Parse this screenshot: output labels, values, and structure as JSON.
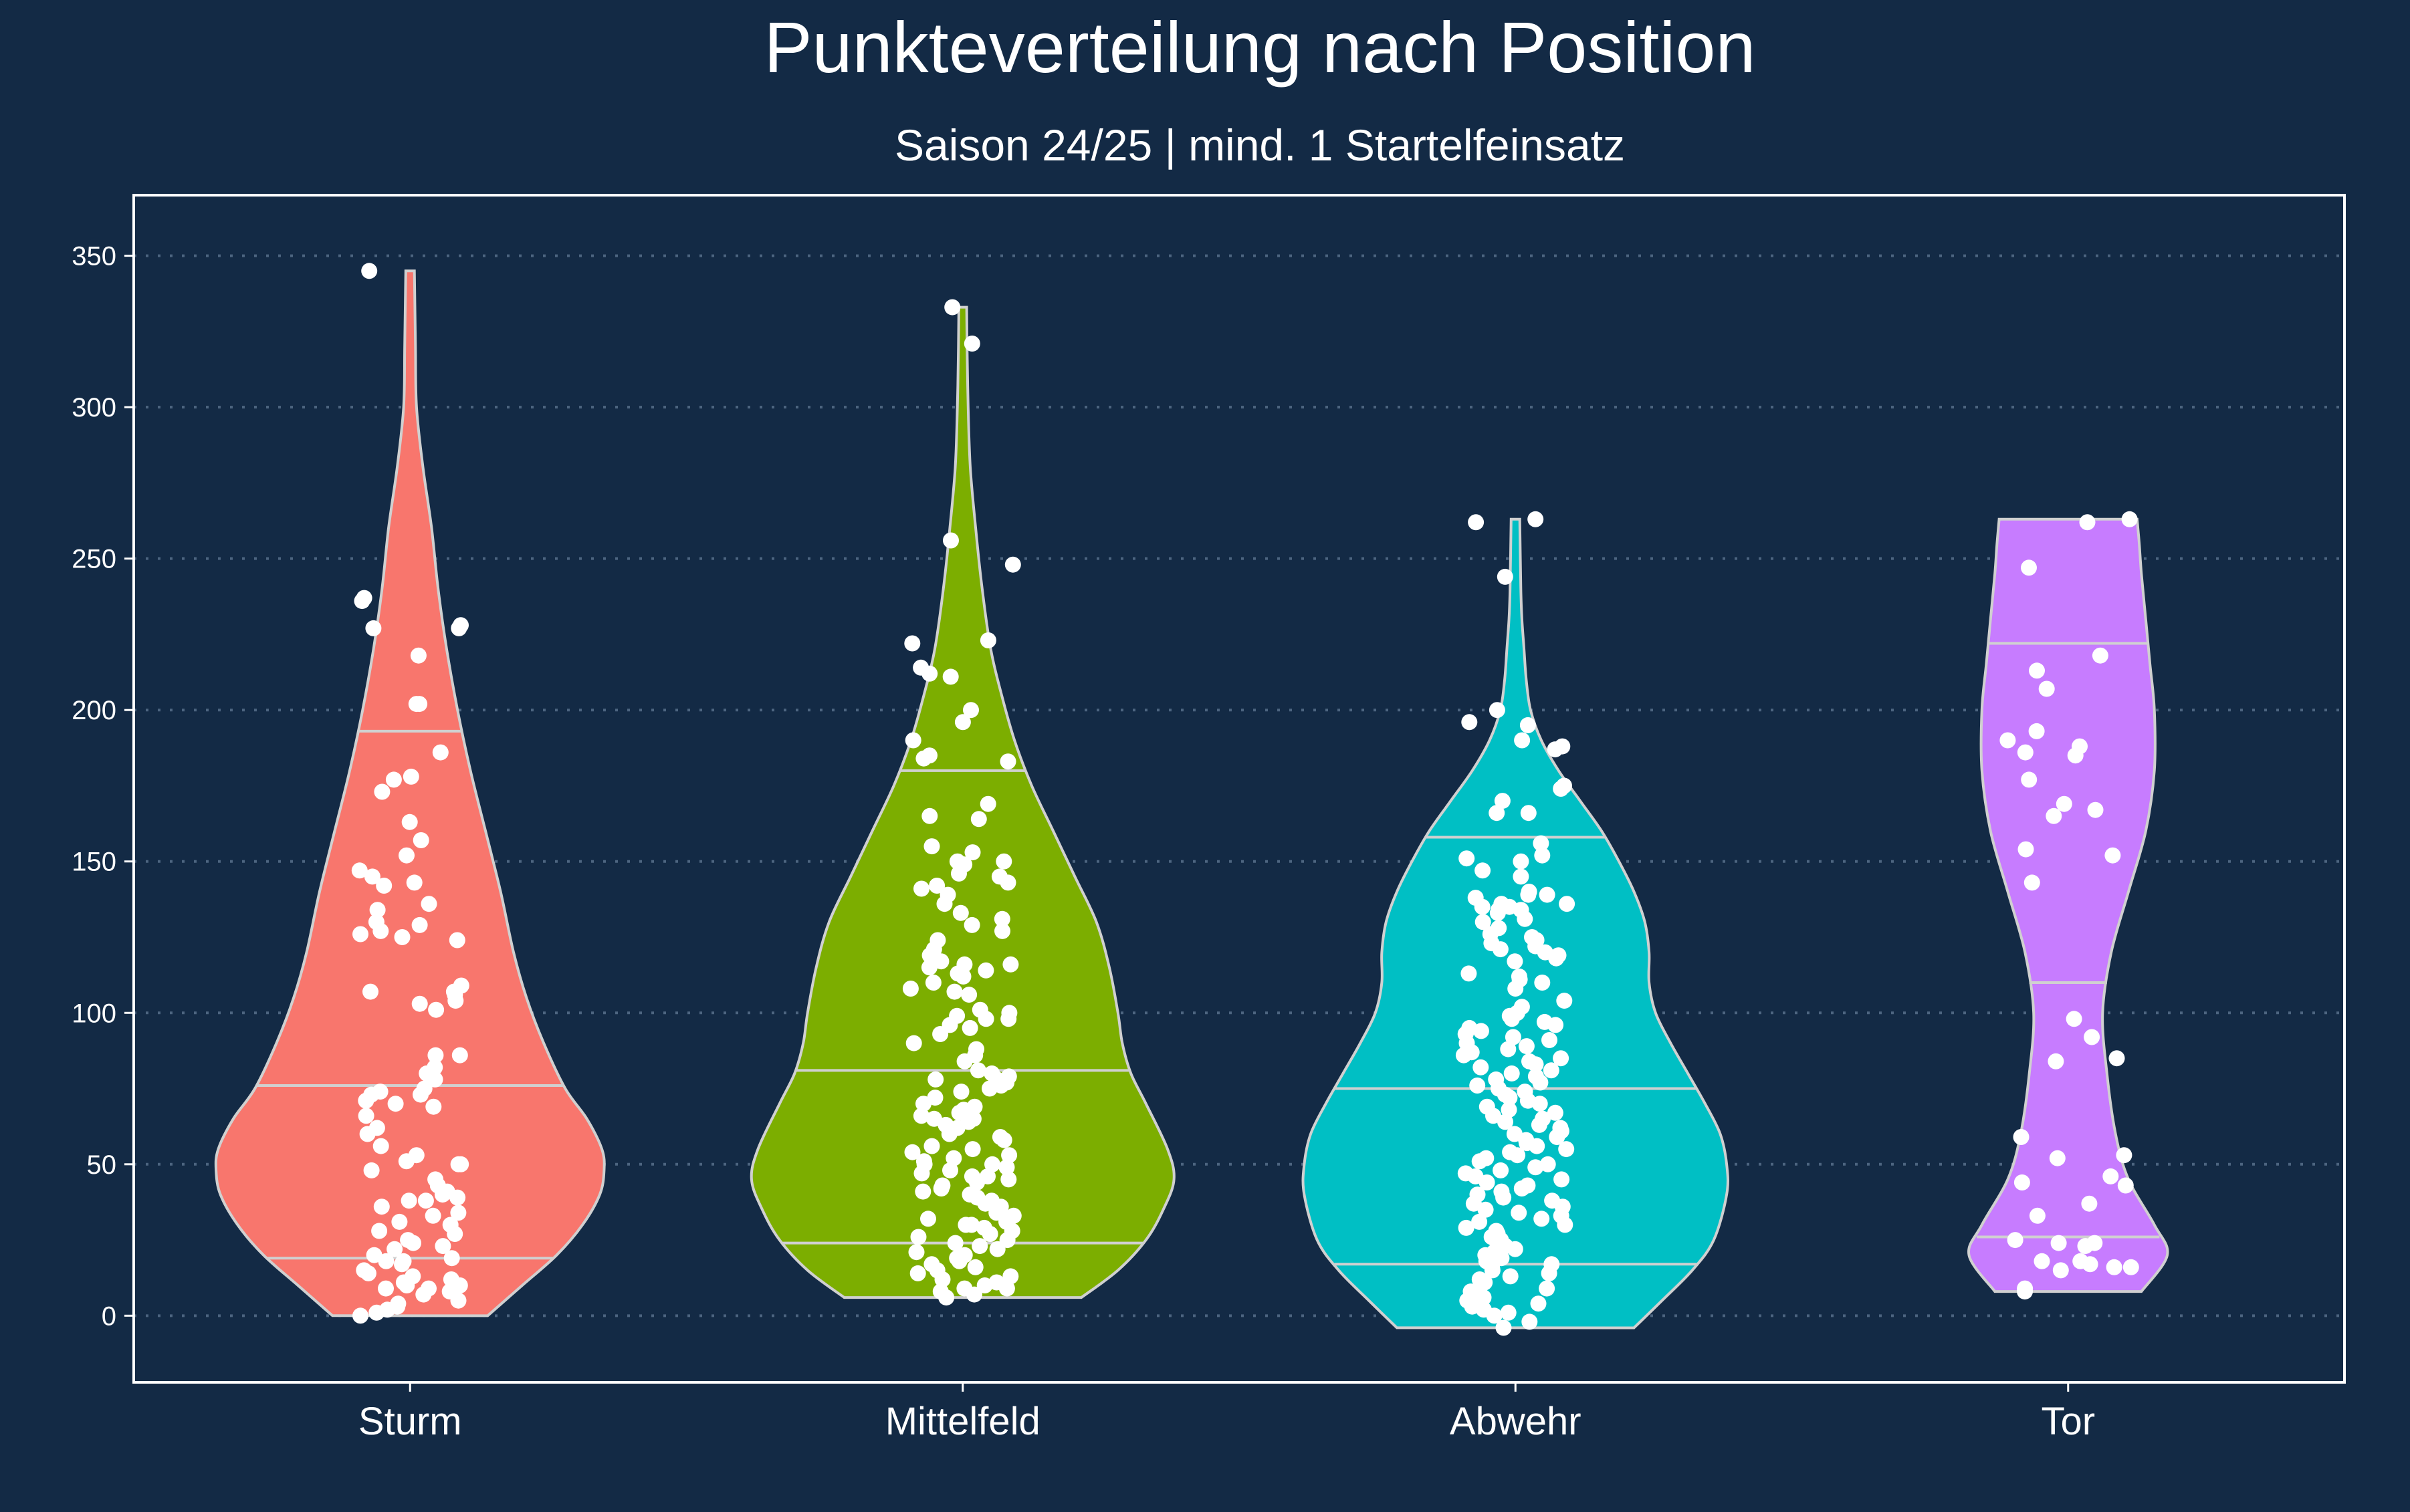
{
  "chart_data": {
    "type": "violin",
    "title": "Punkteverteilung nach Position",
    "subtitle": "Saison 24/25 | mind. 1 Startelfeinsatz",
    "xlabel": "",
    "ylabel": "",
    "ylim": [
      -22,
      370
    ],
    "yticks": [
      0,
      50,
      100,
      150,
      200,
      250,
      300,
      350
    ],
    "grid": "horizontal-dotted",
    "colors": {
      "background": "#132a45",
      "panel_border": "#ffffff",
      "grid": "#4d6580",
      "outline": "#d0d0d0",
      "points": "#ffffff"
    },
    "series": [
      {
        "category": "Sturm",
        "color": "#f8766d",
        "min": 0,
        "max": 345,
        "quantiles": [
          19,
          76,
          193
        ],
        "profile": [
          [
            0,
            0.36
          ],
          [
            10,
            0.52
          ],
          [
            20,
            0.68
          ],
          [
            30,
            0.8
          ],
          [
            40,
            0.88
          ],
          [
            48,
            0.9
          ],
          [
            55,
            0.89
          ],
          [
            65,
            0.82
          ],
          [
            75,
            0.72
          ],
          [
            90,
            0.62
          ],
          [
            105,
            0.54
          ],
          [
            120,
            0.48
          ],
          [
            140,
            0.42
          ],
          [
            160,
            0.35
          ],
          [
            180,
            0.28
          ],
          [
            200,
            0.22
          ],
          [
            220,
            0.17
          ],
          [
            240,
            0.13
          ],
          [
            260,
            0.1
          ],
          [
            280,
            0.06
          ],
          [
            300,
            0.03
          ],
          [
            320,
            0.025
          ],
          [
            345,
            0.02
          ]
        ],
        "points": [
          345,
          237,
          236,
          228,
          227,
          227,
          218,
          202,
          202,
          186,
          178,
          177,
          173,
          163,
          157,
          152,
          147,
          145,
          143,
          142,
          136,
          134,
          130,
          129,
          127,
          126,
          125,
          124,
          109,
          107,
          107,
          106,
          104,
          103,
          101,
          86,
          86,
          82,
          80,
          78,
          75,
          74,
          73,
          73,
          71,
          70,
          69,
          66,
          62,
          60,
          56,
          53,
          51,
          50,
          50,
          48,
          45,
          43,
          41,
          40,
          39,
          38,
          38,
          36,
          34,
          33,
          31,
          30,
          28,
          27,
          25,
          24,
          23,
          22,
          20,
          19,
          18,
          18,
          17,
          15,
          14,
          13,
          12,
          11,
          10,
          10,
          9,
          9,
          8,
          7,
          5,
          4,
          3,
          2,
          1,
          0
        ]
      },
      {
        "category": "Mittelfeld",
        "color": "#7cae00",
        "min": 6,
        "max": 333,
        "quantiles": [
          24,
          81,
          180
        ],
        "profile": [
          [
            6,
            0.55
          ],
          [
            15,
            0.72
          ],
          [
            25,
            0.85
          ],
          [
            35,
            0.93
          ],
          [
            45,
            0.98
          ],
          [
            55,
            0.95
          ],
          [
            70,
            0.85
          ],
          [
            80,
            0.78
          ],
          [
            90,
            0.74
          ],
          [
            100,
            0.72
          ],
          [
            115,
            0.68
          ],
          [
            130,
            0.62
          ],
          [
            145,
            0.52
          ],
          [
            160,
            0.42
          ],
          [
            175,
            0.32
          ],
          [
            190,
            0.24
          ],
          [
            205,
            0.18
          ],
          [
            220,
            0.13
          ],
          [
            240,
            0.09
          ],
          [
            260,
            0.06
          ],
          [
            280,
            0.035
          ],
          [
            300,
            0.025
          ],
          [
            320,
            0.02
          ],
          [
            333,
            0.018
          ]
        ],
        "points": [
          333,
          321,
          256,
          248,
          223,
          222,
          214,
          212,
          211,
          200,
          196,
          190,
          185,
          184,
          183,
          169,
          165,
          164,
          155,
          153,
          150,
          150,
          149,
          146,
          145,
          143,
          142,
          141,
          139,
          136,
          133,
          131,
          129,
          127,
          124,
          121,
          119,
          118,
          117,
          116,
          116,
          115,
          114,
          113,
          112,
          110,
          108,
          107,
          106,
          101,
          100,
          99,
          98,
          98,
          96,
          95,
          93,
          90,
          88,
          86,
          84,
          81,
          80,
          79,
          78,
          78,
          77,
          76,
          75,
          74,
          72,
          70,
          69,
          68,
          67,
          66,
          65,
          65,
          64,
          63,
          62,
          60,
          59,
          58,
          56,
          55,
          54,
          53,
          52,
          51,
          50,
          50,
          49,
          48,
          47,
          46,
          46,
          45,
          44,
          43,
          42,
          41,
          40,
          39,
          38,
          37,
          36,
          35,
          34,
          33,
          32,
          31,
          30,
          30,
          29,
          28,
          27,
          26,
          25,
          24,
          23,
          22,
          21,
          20,
          19,
          18,
          17,
          16,
          15,
          14,
          13,
          12,
          11,
          10,
          9,
          9,
          8,
          7,
          6
        ]
      },
      {
        "category": "Abwehr",
        "color": "#00bfc4",
        "min": -4,
        "max": 263,
        "quantiles": [
          17,
          75,
          158
        ],
        "profile": [
          [
            -4,
            0.55
          ],
          [
            5,
            0.68
          ],
          [
            15,
            0.82
          ],
          [
            25,
            0.92
          ],
          [
            40,
            0.98
          ],
          [
            50,
            0.98
          ],
          [
            60,
            0.95
          ],
          [
            70,
            0.88
          ],
          [
            80,
            0.8
          ],
          [
            90,
            0.72
          ],
          [
            100,
            0.65
          ],
          [
            110,
            0.62
          ],
          [
            120,
            0.62
          ],
          [
            130,
            0.6
          ],
          [
            140,
            0.55
          ],
          [
            150,
            0.48
          ],
          [
            160,
            0.4
          ],
          [
            170,
            0.3
          ],
          [
            180,
            0.2
          ],
          [
            190,
            0.12
          ],
          [
            200,
            0.07
          ],
          [
            210,
            0.05
          ],
          [
            220,
            0.04
          ],
          [
            230,
            0.03
          ],
          [
            240,
            0.025
          ],
          [
            263,
            0.02
          ]
        ],
        "points": [
          263,
          262,
          244,
          200,
          196,
          195,
          190,
          188,
          187,
          175,
          174,
          170,
          166,
          166,
          156,
          152,
          151,
          150,
          147,
          145,
          140,
          139,
          139,
          138,
          136,
          136,
          135,
          135,
          134,
          134,
          133,
          131,
          130,
          128,
          126,
          125,
          124,
          123,
          122,
          121,
          120,
          119,
          118,
          117,
          113,
          112,
          111,
          110,
          108,
          104,
          102,
          100,
          99,
          98,
          97,
          96,
          95,
          94,
          93,
          92,
          91,
          90,
          89,
          88,
          87,
          86,
          85,
          84,
          83,
          82,
          81,
          80,
          79,
          78,
          77,
          76,
          75,
          74,
          73,
          72,
          71,
          70,
          69,
          68,
          67,
          66,
          65,
          64,
          63,
          62,
          61,
          60,
          59,
          58,
          57,
          56,
          55,
          54,
          53,
          52,
          51,
          50,
          49,
          48,
          47,
          46,
          45,
          44,
          43,
          42,
          41,
          40,
          39,
          38,
          37,
          36,
          35,
          34,
          33,
          32,
          31,
          30,
          29,
          28,
          27,
          26,
          25,
          24,
          23,
          22,
          21,
          20,
          19,
          18,
          17,
          16,
          15,
          14,
          13,
          12,
          11,
          10,
          9,
          8,
          7,
          6,
          5,
          4,
          3,
          2,
          1,
          0,
          -2,
          -4
        ]
      },
      {
        "category": "Tor",
        "color": "#c77cff",
        "min": 8,
        "max": 263,
        "quantiles": [
          26,
          110,
          222
        ],
        "profile": [
          [
            8,
            0.34
          ],
          [
            20,
            0.46
          ],
          [
            30,
            0.4
          ],
          [
            45,
            0.28
          ],
          [
            60,
            0.22
          ],
          [
            80,
            0.18
          ],
          [
            100,
            0.16
          ],
          [
            120,
            0.2
          ],
          [
            140,
            0.28
          ],
          [
            160,
            0.36
          ],
          [
            180,
            0.4
          ],
          [
            200,
            0.4
          ],
          [
            215,
            0.38
          ],
          [
            230,
            0.36
          ],
          [
            245,
            0.34
          ],
          [
            255,
            0.33
          ],
          [
            263,
            0.32
          ]
        ],
        "points": [
          263,
          262,
          247,
          218,
          213,
          207,
          193,
          190,
          188,
          186,
          185,
          177,
          169,
          167,
          165,
          154,
          152,
          143,
          98,
          92,
          85,
          84,
          59,
          53,
          52,
          46,
          44,
          43,
          37,
          33,
          25,
          24,
          24,
          23,
          18,
          18,
          17,
          16,
          16,
          15,
          9,
          8
        ]
      }
    ]
  }
}
